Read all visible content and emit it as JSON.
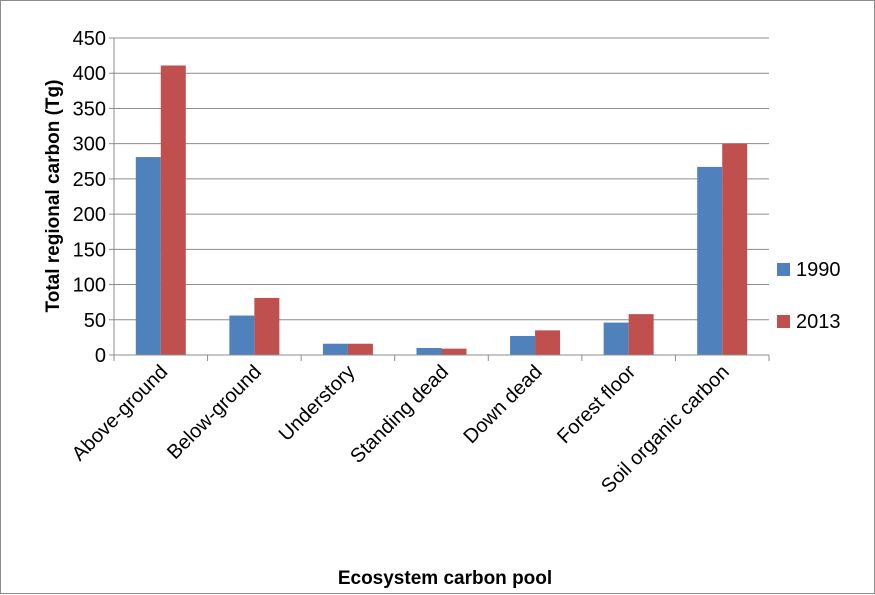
{
  "chart_data": {
    "type": "bar",
    "title": "",
    "xlabel": "Ecosystem carbon pool",
    "ylabel": "Total regional carbon (Tg)",
    "categories": [
      "Above-ground",
      "Below-ground",
      "Understory",
      "Standing dead",
      "Down dead",
      "Forest floor",
      "Soil organic carbon"
    ],
    "series": [
      {
        "name": "1990",
        "color": "#4f81bd",
        "values": [
          281,
          56,
          16,
          10,
          27,
          46,
          267
        ]
      },
      {
        "name": "2013",
        "color": "#c0504d",
        "values": [
          411,
          81,
          16,
          9,
          35,
          58,
          300
        ]
      }
    ],
    "ylim": [
      0,
      450
    ],
    "yticks": [
      0,
      50,
      100,
      150,
      200,
      250,
      300,
      350,
      400,
      450
    ],
    "grid": true,
    "legend_position": "right"
  }
}
